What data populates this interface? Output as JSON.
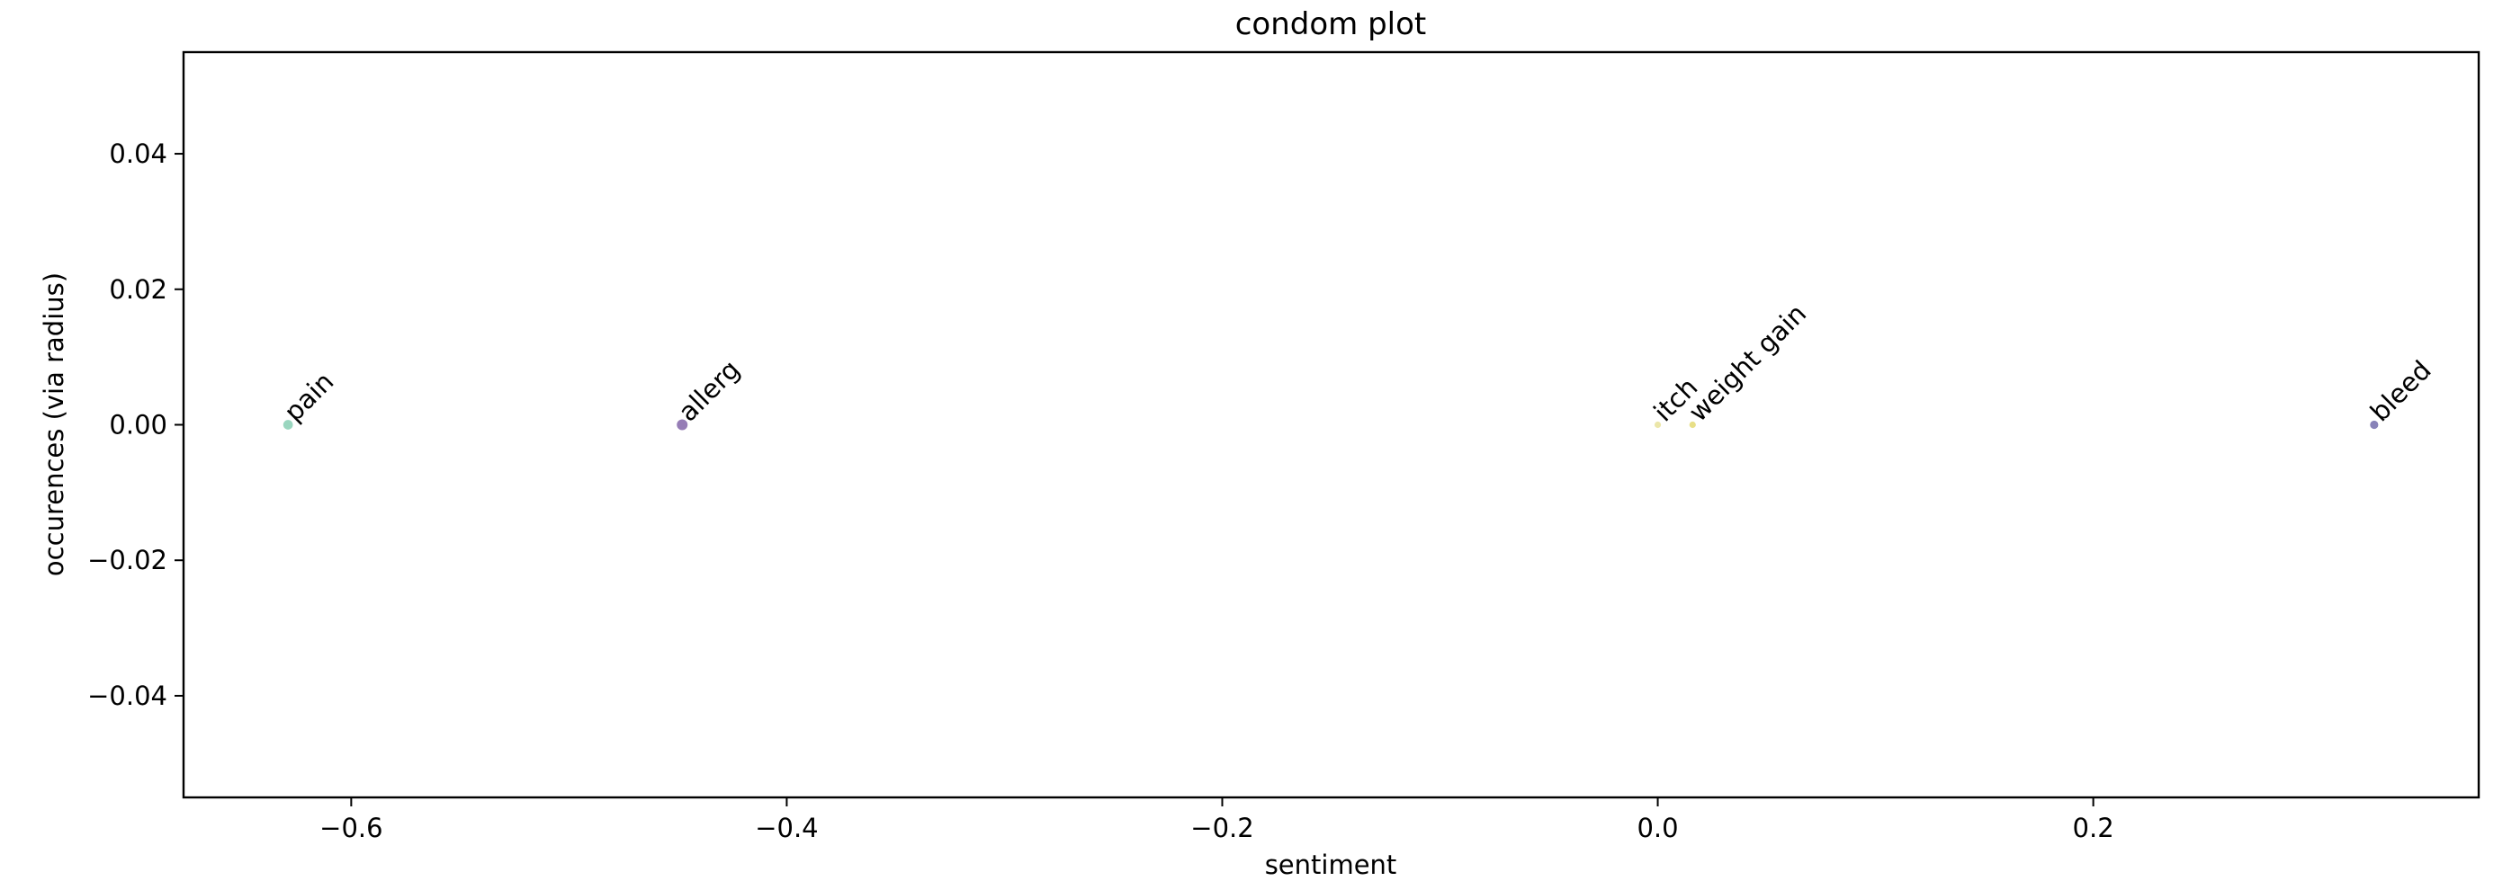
{
  "chart_data": {
    "type": "scatter",
    "title": "condom plot",
    "xlabel": "sentiment",
    "ylabel": "occurences (via radius)",
    "xlim": [
      -0.677,
      0.377
    ],
    "ylim": [
      -0.055,
      0.055
    ],
    "xticks": [
      -0.6,
      -0.4,
      -0.2,
      0.0,
      0.2
    ],
    "xtick_labels": [
      "−0.6",
      "−0.4",
      "−0.2",
      "0.0",
      "0.2"
    ],
    "yticks": [
      0.04,
      0.02,
      0.0,
      -0.02,
      -0.04
    ],
    "ytick_labels": [
      "0.04",
      "0.02",
      "0.00",
      "−0.02",
      "−0.04"
    ],
    "grid": false,
    "points": [
      {
        "label": "pain",
        "x": -0.629,
        "y": 0.0,
        "color": "#8fd1b8",
        "occurrences": 3
      },
      {
        "label": "allerg",
        "x": -0.448,
        "y": 0.0,
        "color": "#8b6fae",
        "occurrences": 4
      },
      {
        "label": "itch",
        "x": 0.0,
        "y": 0.0,
        "color": "#e9e3a0",
        "occurrences": 1
      },
      {
        "label": "weight gain",
        "x": 0.016,
        "y": 0.0,
        "color": "#e6dc7a",
        "occurrences": 1
      },
      {
        "label": "bleed",
        "x": 0.329,
        "y": 0.0,
        "color": "#7b74b0",
        "occurrences": 2
      }
    ]
  }
}
